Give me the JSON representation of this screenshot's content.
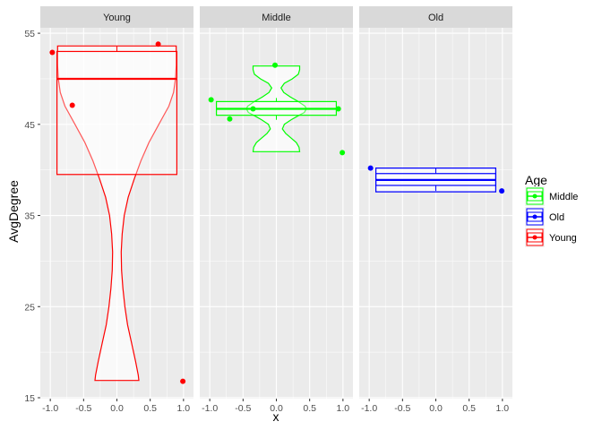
{
  "chart_data": {
    "type": "violin+boxplot+jitter (faceted)",
    "xlabel": "x",
    "ylabel": "AvgDegree",
    "xlim": [
      -1.15,
      1.15
    ],
    "ylim": [
      14.9,
      55.6
    ],
    "x_ticks": [
      -1.0,
      -0.5,
      0.0,
      0.5,
      1.0
    ],
    "x_tick_labels": [
      "-1.0",
      "-0.5",
      "0.0",
      "0.5",
      "1.0"
    ],
    "y_ticks": [
      15,
      25,
      35,
      45,
      55
    ],
    "y_tick_labels": [
      "15",
      "25",
      "35",
      "45",
      "55"
    ],
    "grid": true,
    "legend": {
      "title": "Age",
      "placement": "right",
      "entries": [
        {
          "label": "Middle",
          "color": "#00ff00"
        },
        {
          "label": "Old",
          "color": "#0000ff"
        },
        {
          "label": "Young",
          "color": "#ff0000"
        }
      ]
    },
    "panels": [
      {
        "strip": "Young",
        "color": "#ff0000",
        "violin": [
          [
            16.9,
            0.33
          ],
          [
            17.5,
            0.32
          ],
          [
            19,
            0.28
          ],
          [
            21,
            0.22
          ],
          [
            23,
            0.16
          ],
          [
            25,
            0.12
          ],
          [
            27,
            0.09
          ],
          [
            29,
            0.07
          ],
          [
            31,
            0.065
          ],
          [
            33,
            0.08
          ],
          [
            35,
            0.11
          ],
          [
            37,
            0.17
          ],
          [
            39,
            0.26
          ],
          [
            41,
            0.36
          ],
          [
            43,
            0.48
          ],
          [
            45,
            0.63
          ],
          [
            47,
            0.78
          ],
          [
            48.5,
            0.85
          ],
          [
            50,
            0.88
          ],
          [
            51.5,
            0.89
          ],
          [
            53,
            0.89
          ],
          [
            53.6,
            0.89
          ]
        ],
        "box": {
          "q1": 39.5,
          "median": 50.0,
          "q3": 53.0,
          "whisker_low": 39.5,
          "whisker_high": 53.6,
          "xmin": -0.9,
          "xmax": 0.9
        },
        "points": [
          [
            -0.97,
            52.9
          ],
          [
            -0.67,
            47.1
          ],
          [
            0.62,
            53.8
          ],
          [
            0.99,
            16.8
          ]
        ]
      },
      {
        "strip": "Middle",
        "color": "#00ff00",
        "violin": [
          [
            42.0,
            0.35
          ],
          [
            42.5,
            0.34
          ],
          [
            43.0,
            0.3
          ],
          [
            43.5,
            0.22
          ],
          [
            44.0,
            0.14
          ],
          [
            44.5,
            0.09
          ],
          [
            45.0,
            0.12
          ],
          [
            45.5,
            0.22
          ],
          [
            46.0,
            0.34
          ],
          [
            46.3,
            0.42
          ],
          [
            46.7,
            0.45
          ],
          [
            47.0,
            0.43
          ],
          [
            47.5,
            0.33
          ],
          [
            48.0,
            0.21
          ],
          [
            48.5,
            0.11
          ],
          [
            49.0,
            0.07
          ],
          [
            49.5,
            0.12
          ],
          [
            50.0,
            0.24
          ],
          [
            50.5,
            0.33
          ],
          [
            51.0,
            0.35
          ],
          [
            51.4,
            0.35
          ]
        ],
        "box": {
          "q1": 46.0,
          "median": 46.7,
          "q3": 47.5,
          "whisker_low": 45.5,
          "whisker_high": 47.9,
          "xmin": -0.9,
          "xmax": 0.9
        },
        "points": [
          [
            -0.98,
            47.7
          ],
          [
            -0.7,
            45.6
          ],
          [
            -0.35,
            46.7
          ],
          [
            -0.02,
            51.5
          ],
          [
            0.93,
            46.7
          ],
          [
            0.99,
            41.9
          ]
        ]
      },
      {
        "strip": "Old",
        "color": "#0000ff",
        "violin": [
          [
            37.6,
            0.9
          ],
          [
            37.8,
            0.9
          ],
          [
            38.0,
            0.9
          ],
          [
            38.3,
            0.9
          ],
          [
            38.6,
            0.9
          ],
          [
            39.0,
            0.9
          ],
          [
            39.4,
            0.9
          ],
          [
            39.7,
            0.9
          ],
          [
            40.0,
            0.9
          ],
          [
            40.2,
            0.9
          ]
        ],
        "box": {
          "q1": 38.3,
          "median": 38.9,
          "q3": 39.6,
          "whisker_low": 37.7,
          "whisker_high": 40.2,
          "xmin": -0.9,
          "xmax": 0.9
        },
        "points": [
          [
            -0.98,
            40.2
          ],
          [
            0.99,
            37.7
          ]
        ]
      }
    ]
  }
}
